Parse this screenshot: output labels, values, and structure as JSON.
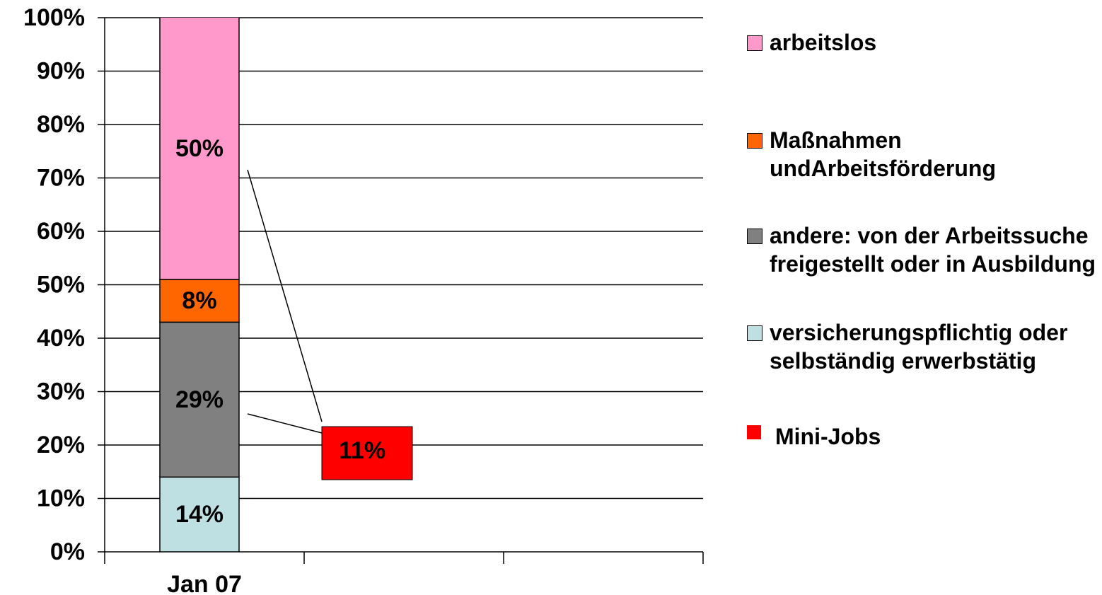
{
  "chart_data": {
    "type": "stacked-bar",
    "categories": [
      "Jan 07",
      null,
      null
    ],
    "series": [
      {
        "name": "versicherungspflichtig oder selbständig erwerbstätig",
        "color": "#bfe0e3",
        "values": [
          14,
          null,
          null
        ],
        "value_labels": [
          "14%",
          null,
          null
        ]
      },
      {
        "name": "andere: von der Arbeitssuche freigestellt oder in Ausbildung",
        "color": "#808080",
        "values": [
          29,
          null,
          null
        ],
        "value_labels": [
          "29%",
          null,
          null
        ]
      },
      {
        "name": "Maßnahmen undArbeitsförderung",
        "color": "#ff6600",
        "values": [
          8,
          null,
          null
        ],
        "value_labels": [
          "8%",
          null,
          null
        ]
      },
      {
        "name": "arbeitslos",
        "color": "#ff99cc",
        "values": [
          50,
          null,
          null
        ],
        "value_labels": [
          "50%",
          null,
          null
        ]
      }
    ],
    "callout": {
      "name": "Mini-Jobs",
      "color": "#ff0000",
      "value": 11,
      "value_label": "11%"
    },
    "ylim": [
      0,
      100
    ],
    "yticks": [
      {
        "value": 0,
        "label": "0%"
      },
      {
        "value": 10,
        "label": "10%"
      },
      {
        "value": 20,
        "label": "20%"
      },
      {
        "value": 30,
        "label": "30%"
      },
      {
        "value": 40,
        "label": "40%"
      },
      {
        "value": 50,
        "label": "50%"
      },
      {
        "value": 60,
        "label": "60%"
      },
      {
        "value": 70,
        "label": "70%"
      },
      {
        "value": 80,
        "label": "80%"
      },
      {
        "value": 90,
        "label": "90%"
      },
      {
        "value": 100,
        "label": "100%"
      }
    ],
    "grid": true
  }
}
